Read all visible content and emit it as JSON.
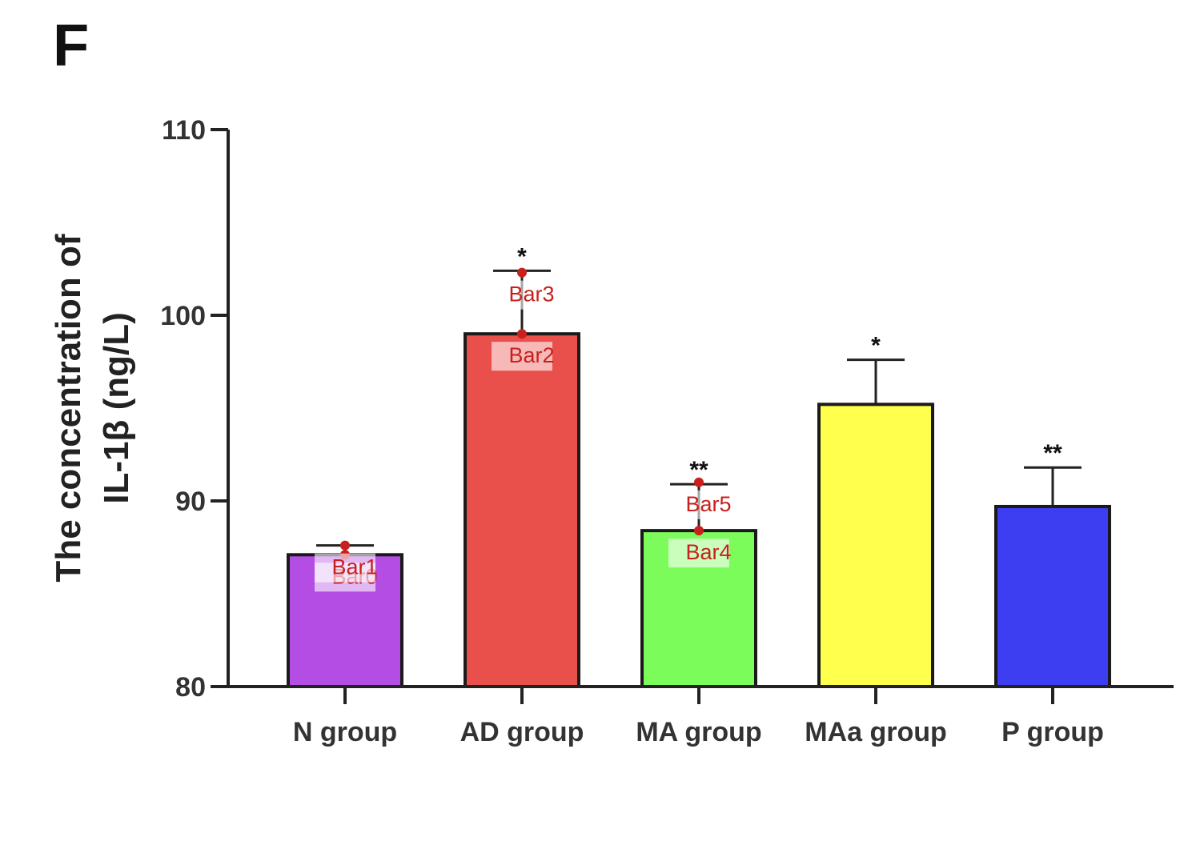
{
  "panel_label": "F",
  "chart_data": {
    "type": "bar",
    "categories": [
      "N group",
      "AD group",
      "MA group",
      "MAa group",
      "P group"
    ],
    "values": [
      87.1,
      99.0,
      88.4,
      95.2,
      89.7
    ],
    "errors": [
      0.5,
      3.4,
      2.5,
      2.4,
      2.1
    ],
    "colors": [
      "#b44de3",
      "#e9504b",
      "#7cfc5a",
      "#ffff4d",
      "#3d3df2"
    ],
    "significance": [
      "",
      "*",
      "**",
      "*",
      "**"
    ],
    "ylabel_lines": [
      "The concentration of",
      "IL-1β (ng/L)"
    ],
    "ylim": [
      80,
      110
    ],
    "yticks": [
      80,
      90,
      100,
      110
    ],
    "grid": false,
    "annotations": [
      {
        "label": "Bar0",
        "value": 87.1,
        "category_index": 0
      },
      {
        "label": "Bar1",
        "value": 87.6,
        "category_index": 0
      },
      {
        "label": "Bar2",
        "value": 99.0,
        "category_index": 1
      },
      {
        "label": "Bar3",
        "value": 102.3,
        "category_index": 1
      },
      {
        "label": "Bar4",
        "value": 88.4,
        "category_index": 2
      },
      {
        "label": "Bar5",
        "value": 91.0,
        "category_index": 2
      }
    ]
  }
}
